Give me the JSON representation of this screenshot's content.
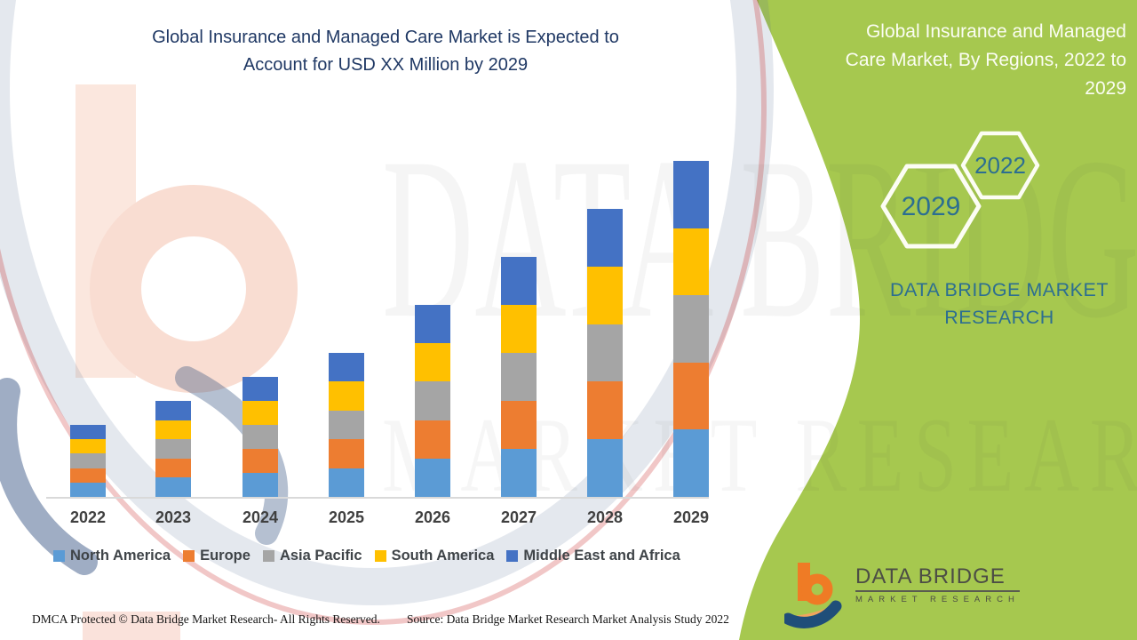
{
  "title": {
    "line1": "Global Insurance and Managed Care Market is Expected to",
    "line2": "Account for USD XX Million by 2029"
  },
  "side_panel": {
    "heading_lines": [
      "Global Insurance and Managed",
      "Care Market, By Regions, 2022 to",
      "2029"
    ],
    "hexagons": [
      {
        "label": "2029"
      },
      {
        "label": "2022"
      }
    ],
    "brand_lines": [
      "DATA BRIDGE MARKET",
      "RESEARCH"
    ],
    "accent_green": "#A6C84F",
    "text_blue": "#2C6E91"
  },
  "chart_data": {
    "type": "bar",
    "stacked": true,
    "title": "Global Insurance and Managed Care Market is Expected to Account for USD XX Million by 2029",
    "categories": [
      "2022",
      "2023",
      "2024",
      "2025",
      "2026",
      "2027",
      "2028",
      "2029"
    ],
    "series": [
      {
        "name": "North America",
        "color": "#5B9BD5",
        "values": [
          0.3,
          0.4,
          0.5,
          0.6,
          0.8,
          1.0,
          1.2,
          1.4
        ]
      },
      {
        "name": "Europe",
        "color": "#ED7D31",
        "values": [
          0.3,
          0.4,
          0.5,
          0.6,
          0.8,
          1.0,
          1.2,
          1.4
        ]
      },
      {
        "name": "Asia Pacific",
        "color": "#A5A5A5",
        "values": [
          0.3,
          0.4,
          0.5,
          0.6,
          0.8,
          1.0,
          1.2,
          1.4
        ]
      },
      {
        "name": "South America",
        "color": "#FFC000",
        "values": [
          0.3,
          0.4,
          0.5,
          0.6,
          0.8,
          1.0,
          1.2,
          1.4
        ]
      },
      {
        "name": "Middle East and Africa",
        "color": "#4472C4",
        "values": [
          0.3,
          0.4,
          0.5,
          0.6,
          0.8,
          1.0,
          1.2,
          1.4
        ]
      }
    ],
    "bar_totals": [
      1.5,
      2.0,
      2.5,
      3.0,
      4.0,
      5.0,
      6.0,
      7.0
    ],
    "xlabel": "",
    "ylabel": "",
    "ylim": [
      0,
      7.5
    ],
    "grid": false,
    "legend_position": "bottom",
    "axis_labels_masked_as": "USD XX Million"
  },
  "footer": {
    "left": "DMCA Protected © Data Bridge Market Research- All Rights Reserved.",
    "right": "Source: Data Bridge Market Research Market Analysis Study 2022"
  },
  "logo": {
    "title": "DATA BRIDGE",
    "subtitle": "MARKET RESEARCH"
  },
  "watermark": {
    "text_large": "DATA BRIDGE",
    "text_small": "MARKET RESEARCH"
  }
}
